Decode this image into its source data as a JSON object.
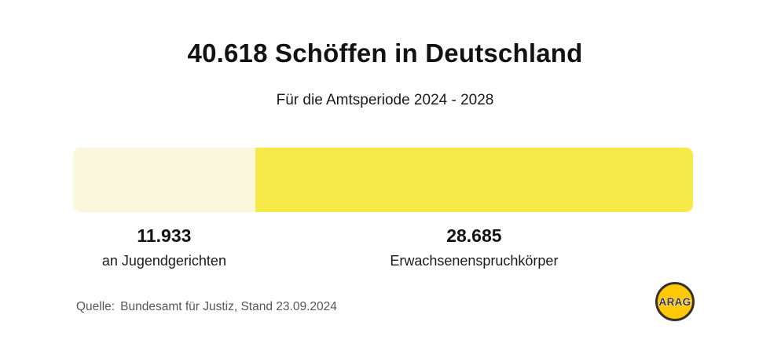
{
  "chart_data": {
    "type": "bar",
    "orientation": "horizontal_stacked",
    "title": "40.618 Schöffen in Deutschland",
    "subtitle": "Für die Amtsperiode 2024 - 2028",
    "total": 40618,
    "total_label": "40.618",
    "categories": [
      "an Jugendgerichten",
      "Erwachsenenspruchkörper"
    ],
    "values": [
      11933,
      28685
    ],
    "value_labels": [
      "11.933",
      "28.685"
    ],
    "segment_colors": [
      "#FAF7DC",
      "#F7EA48"
    ],
    "axes": "none",
    "grid": false,
    "legend_position": "below-bar"
  },
  "source": {
    "label": "Quelle:",
    "text": "Bundesamt für Justiz, Stand 23.09.2024"
  },
  "logo": {
    "text": "ARAG",
    "fill": "#FFC805",
    "ring": "#38302A",
    "text_color": "#38302A"
  }
}
